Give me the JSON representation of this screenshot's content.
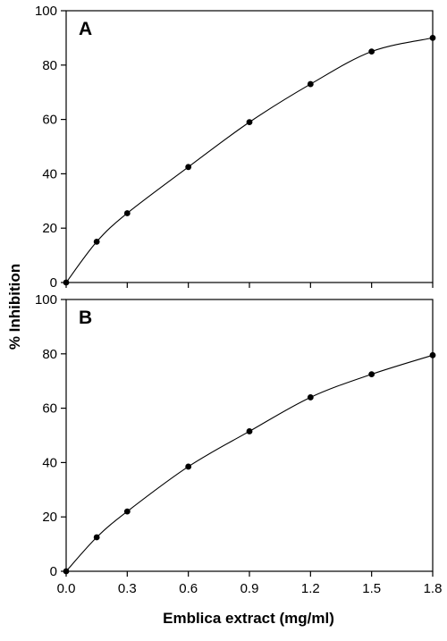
{
  "chart_data": [
    {
      "type": "line",
      "panel_label": "A",
      "x": [
        0,
        0.15,
        0.3,
        0.6,
        0.9,
        1.2,
        1.5,
        1.8
      ],
      "series": [
        {
          "values": [
            0,
            15,
            25.5,
            42.5,
            59,
            73,
            85,
            90
          ],
          "markers": true,
          "smooth": true
        }
      ],
      "xlim": [
        0,
        1.8
      ],
      "ylim": [
        0,
        100
      ],
      "yticks": [
        0,
        20,
        40,
        60,
        80,
        100
      ],
      "grid": false
    },
    {
      "type": "line",
      "panel_label": "B",
      "x": [
        0,
        0.15,
        0.3,
        0.6,
        0.9,
        1.2,
        1.5,
        1.8
      ],
      "series": [
        {
          "values": [
            0,
            12.5,
            22,
            38.5,
            51.5,
            64,
            72.5,
            79.5
          ],
          "markers": true,
          "smooth": true
        }
      ],
      "xlim": [
        0,
        1.8
      ],
      "ylim": [
        0,
        100
      ],
      "xticks": [
        "0.0",
        "0.3",
        "0.6",
        "0.9",
        "1.2",
        "1.5",
        "1.8"
      ],
      "yticks": [
        0,
        20,
        40,
        60,
        80,
        100
      ],
      "grid": false
    }
  ],
  "shared": {
    "ylabel": "% Inhibition",
    "xlabel": "Emblica extract (mg/ml)"
  },
  "colors": {
    "line": "#000000",
    "marker": "#000000",
    "axis": "#000000"
  }
}
